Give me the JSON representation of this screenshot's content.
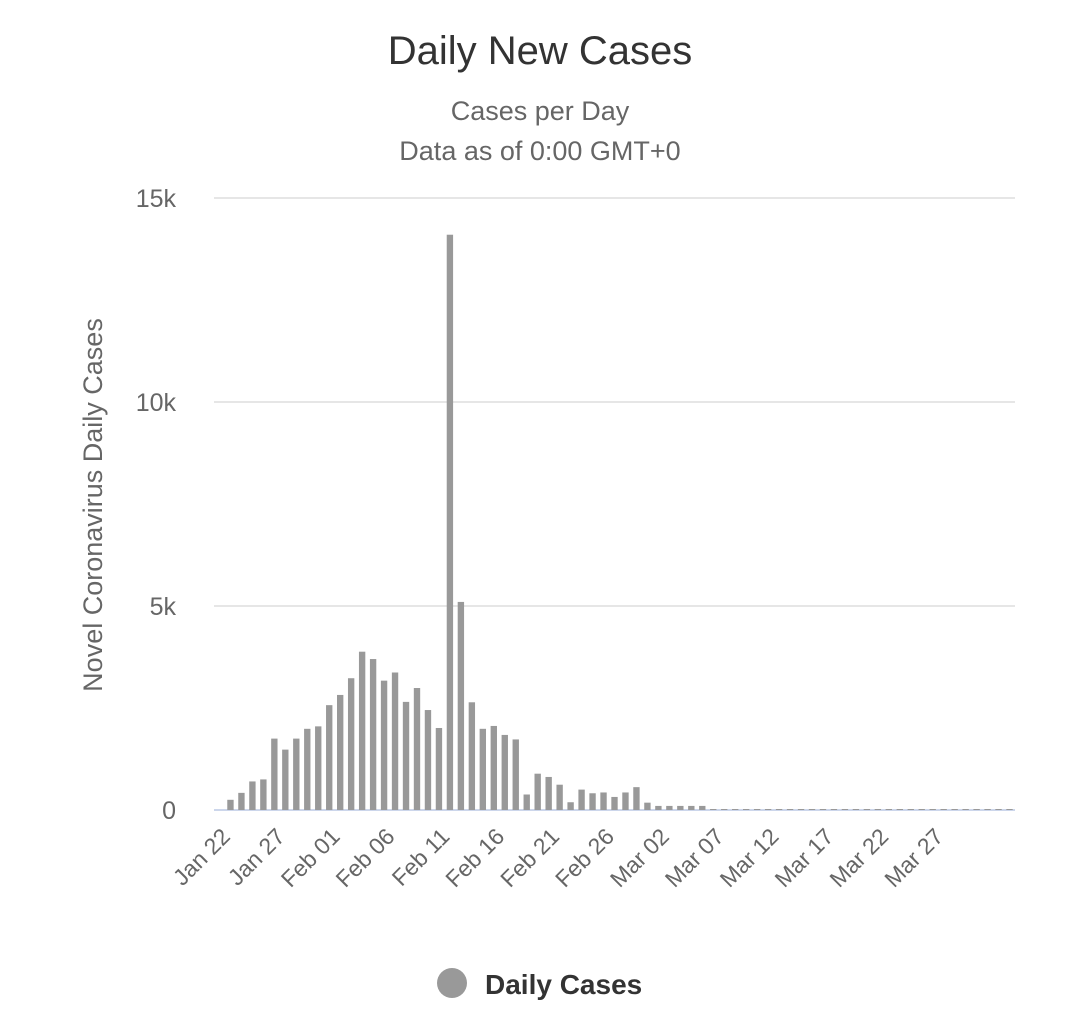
{
  "chart_data": {
    "type": "bar",
    "title": "Daily New Cases",
    "subtitle_lines": [
      "Cases per Day",
      "Data as of 0:00 GMT+0"
    ],
    "xlabel": "",
    "ylabel": "Novel Coronavirus Daily Cases",
    "ylim": [
      0,
      15000
    ],
    "yticks": [
      0,
      5000,
      10000,
      15000
    ],
    "ytick_labels": [
      "0",
      "5k",
      "10k",
      "15k"
    ],
    "xtick_labels": [
      "Jan 22",
      "Jan 27",
      "Feb 01",
      "Feb 06",
      "Feb 11",
      "Feb 16",
      "Feb 21",
      "Feb 26",
      "Mar 02",
      "Mar 07",
      "Mar 12",
      "Mar 17",
      "Mar 22",
      "Mar 27"
    ],
    "grid": true,
    "legend_position": "bottom-center",
    "series": [
      {
        "name": "Daily Cases",
        "color": "#999999",
        "values": [
          0,
          250,
          420,
          700,
          750,
          1750,
          1480,
          1750,
          1990,
          2050,
          2570,
          2820,
          3230,
          3880,
          3700,
          3170,
          3370,
          2650,
          2990,
          2450,
          2010,
          14100,
          5100,
          2640,
          1990,
          2060,
          1840,
          1730,
          380,
          890,
          810,
          620,
          190,
          500,
          410,
          430,
          320,
          430,
          560,
          180,
          100,
          100,
          100,
          100,
          100,
          20,
          20,
          20,
          20,
          20,
          20,
          20,
          20,
          20,
          20,
          20,
          20,
          20,
          20,
          20,
          20,
          20,
          20,
          20,
          20,
          20,
          20,
          20,
          20,
          20,
          20,
          20,
          20
        ]
      }
    ]
  }
}
